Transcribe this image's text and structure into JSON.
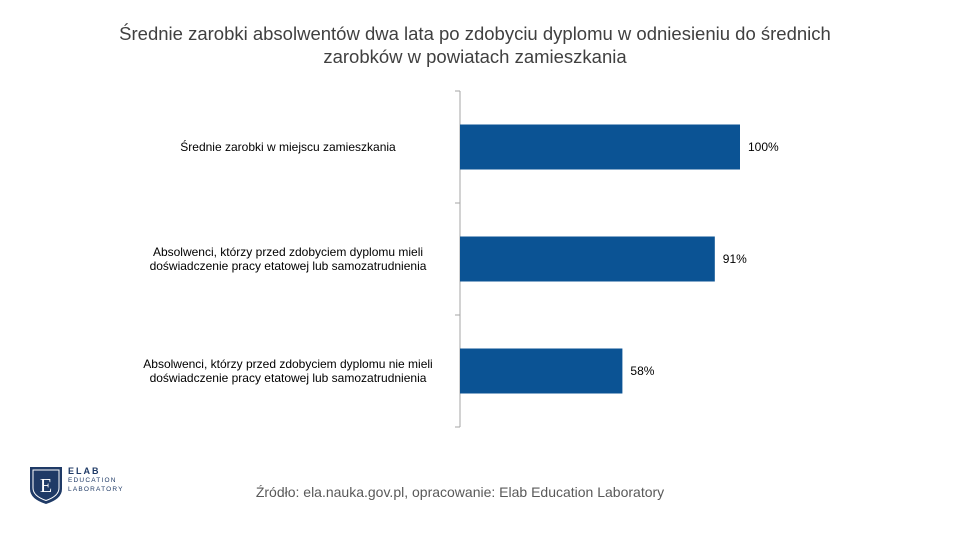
{
  "chart_data": {
    "type": "bar",
    "orientation": "horizontal",
    "title": "Średnie zarobki absolwentów dwa lata po zdobyciu dyplomu w odniesieniu do średnich zarobków w powiatach zamieszkania",
    "categories": [
      "Średnie zarobki w miejscu zamieszkania",
      "Absolwenci, którzy przed zdobyciem dyplomu mieli doświadczenie pracy etatowej lub samozatrudnienia",
      "Absolwenci, którzy przed zdobyciem dyplomu nie mieli doświadczenie pracy etatowej lub samozatrudnienia"
    ],
    "values": [
      100,
      91,
      58
    ],
    "value_labels": [
      "100%",
      "91%",
      "58%"
    ],
    "unit": "%",
    "xlim": [
      0,
      100
    ],
    "bar_color": "#0b5394",
    "grid": false,
    "legend": "none"
  },
  "source": "Źródło: ela.nauka.gov.pl, opracowanie: Elab Education Laboratory",
  "logo": {
    "letter": "E",
    "line1": "ELAB",
    "line2": "EDUCATION",
    "line3": "LABORATORY"
  }
}
